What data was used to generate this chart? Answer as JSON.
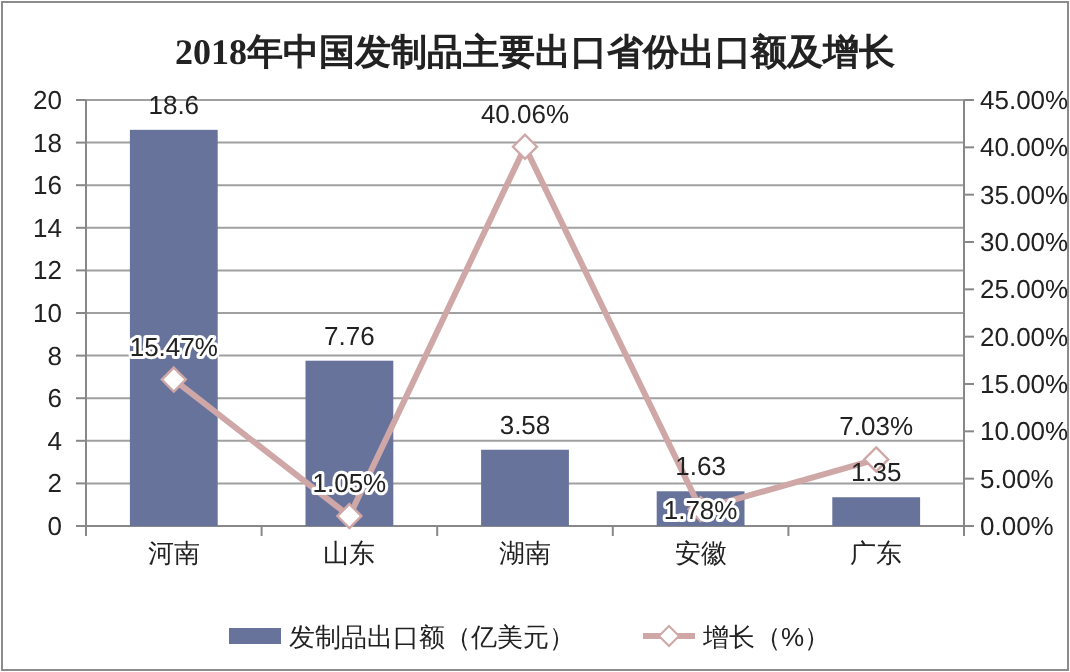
{
  "chart_data": {
    "type": "bar",
    "title": "2018年中国发制品主要出口省份出口额及增长",
    "categories": [
      "河南",
      "山东",
      "湖南",
      "安徽",
      "广东"
    ],
    "series": [
      {
        "name": "发制品出口额（亿美元）",
        "color": "#67739b",
        "values": [
          18.6,
          7.76,
          3.58,
          1.63,
          1.35
        ],
        "value_labels": [
          "18.6",
          "7.76",
          "3.58",
          "1.63",
          "1.35"
        ]
      },
      {
        "name": "增长（%）",
        "type": "line",
        "axis": "y2",
        "color": "#d0a7a7",
        "marker": "diamond",
        "values": [
          15.47,
          1.05,
          40.06,
          1.78,
          7.03
        ],
        "value_labels": [
          "15.47%",
          "1.05%",
          "40.06%",
          "1.78%",
          "7.03%"
        ]
      }
    ],
    "ylim": [
      0,
      20
    ],
    "yticks": [
      0,
      2,
      4,
      6,
      8,
      10,
      12,
      14,
      16,
      18,
      20
    ],
    "y2lim": [
      0,
      45
    ],
    "y2ticks": [
      {
        "value": 0,
        "label": "0.00%"
      },
      {
        "value": 5,
        "label": "5.00%"
      },
      {
        "value": 10,
        "label": "10.00%"
      },
      {
        "value": 15,
        "label": "15.00%"
      },
      {
        "value": 20,
        "label": "20.00%"
      },
      {
        "value": 25,
        "label": "25.00%"
      },
      {
        "value": 30,
        "label": "30.00%"
      },
      {
        "value": 35,
        "label": "35.00%"
      },
      {
        "value": 40,
        "label": "40.00%"
      },
      {
        "value": 45,
        "label": "45.00%"
      }
    ],
    "grid": "y",
    "legend": "bottom"
  }
}
